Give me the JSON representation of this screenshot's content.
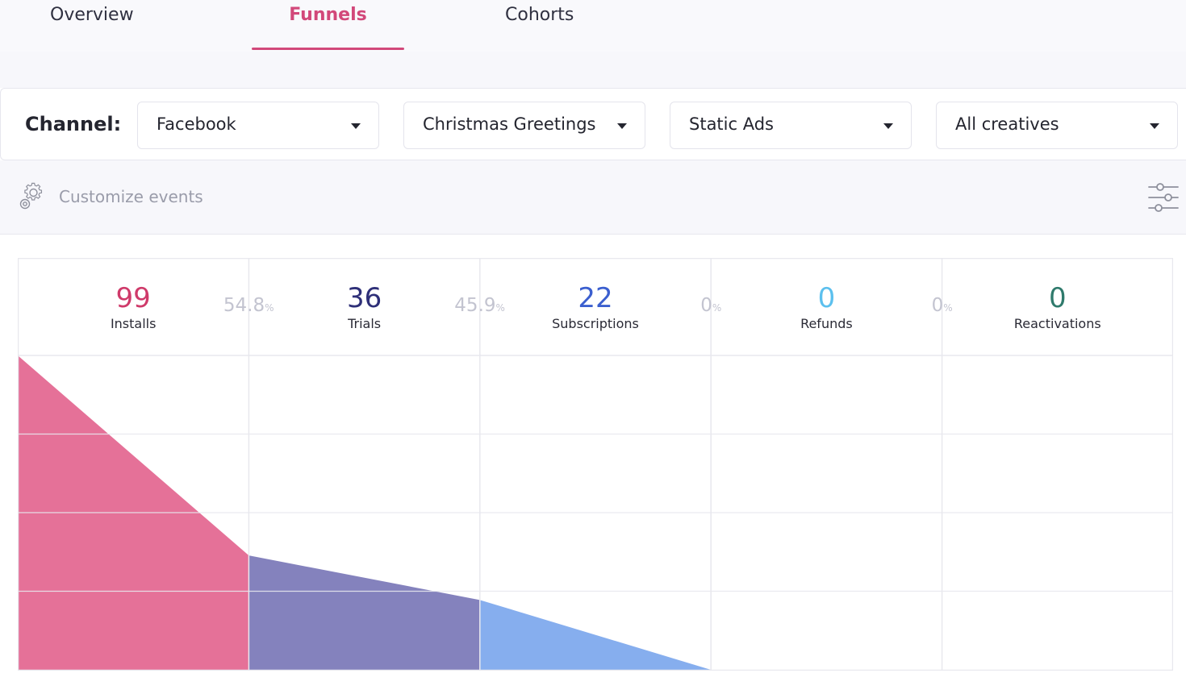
{
  "tabs": [
    {
      "label": "Overview"
    },
    {
      "label": "Funnels"
    },
    {
      "label": "Cohorts"
    }
  ],
  "filters": {
    "channel_label": "Channel:",
    "channel": "Facebook",
    "campaign": "Christmas Greetings",
    "ad_type": "Static Ads",
    "creatives": "All creatives"
  },
  "customize": {
    "label": "Customize events"
  },
  "icons": {
    "customize": "gear-icon",
    "settings": "sliders-icon",
    "dropdown": "caret-down-icon"
  },
  "chart_data": {
    "type": "area",
    "stages": [
      {
        "label": "Installs",
        "value": 99,
        "color": "#e57198",
        "num_color": "#cf3a6a"
      },
      {
        "label": "Trials",
        "value": 36,
        "color": "#8482bd",
        "num_color": "#2e2f78"
      },
      {
        "label": "Subscriptions",
        "value": 22,
        "color": "#86aeee",
        "num_color": "#3b5fcf"
      },
      {
        "label": "Refunds",
        "value": 0,
        "color": "#8fc9f0",
        "num_color": "#5cc0ee"
      },
      {
        "label": "Reactivations",
        "value": 0,
        "color": "#6aa89a",
        "num_color": "#2f7a6c"
      }
    ],
    "conversions": [
      {
        "value": "54.8",
        "unit": "%"
      },
      {
        "value": "45.9",
        "unit": "%"
      },
      {
        "value": "0",
        "unit": "%"
      },
      {
        "value": "0",
        "unit": "%"
      }
    ],
    "grid": true
  }
}
